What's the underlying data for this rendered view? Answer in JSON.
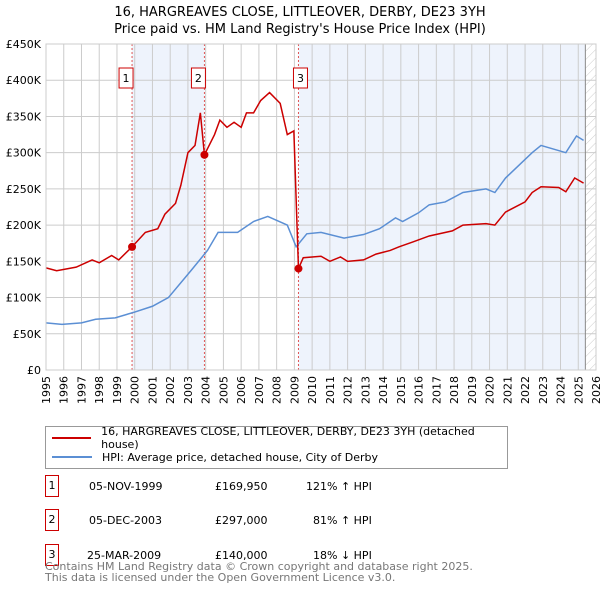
{
  "title_lines": [
    "16, HARGREAVES CLOSE, LITTLEOVER, DERBY, DE23 3YH",
    "Price paid vs. HM Land Registry's House Price Index (HPI)"
  ],
  "chart_data": {
    "type": "line",
    "title": "16, HARGREAVES CLOSE, LITTLEOVER, DERBY, DE23 3YH - Price paid vs. HM Land Registry's House Price Index (HPI)",
    "xlim": [
      1995,
      2026
    ],
    "ylim": [
      0,
      450000
    ],
    "x_ticks": [
      "1995",
      "1996",
      "1997",
      "1998",
      "1999",
      "2000",
      "2001",
      "2002",
      "2003",
      "2004",
      "2005",
      "2006",
      "2007",
      "2008",
      "2009",
      "2010",
      "2011",
      "2012",
      "2013",
      "2014",
      "2015",
      "2016",
      "2017",
      "2018",
      "2019",
      "2020",
      "2021",
      "2022",
      "2023",
      "2024",
      "2025",
      "2026"
    ],
    "y_ticks": [
      {
        "v": 0,
        "l": "£0"
      },
      {
        "v": 50000,
        "l": "£50K"
      },
      {
        "v": 100000,
        "l": "£100K"
      },
      {
        "v": 150000,
        "l": "£150K"
      },
      {
        "v": 200000,
        "l": "£200K"
      },
      {
        "v": 250000,
        "l": "£250K"
      },
      {
        "v": 300000,
        "l": "£300K"
      },
      {
        "v": 350000,
        "l": "£350K"
      },
      {
        "v": 400000,
        "l": "£400K"
      },
      {
        "v": 450000,
        "l": "£450K"
      }
    ],
    "grid": true,
    "series": [
      {
        "name": "16, HARGREAVES CLOSE, LITTLEOVER, DERBY, DE23 3YH (detached house)",
        "color": "#cc0000",
        "x": [
          1995,
          1995.6,
          1996.7,
          1997.6,
          1998,
          1998.7,
          1999.1,
          1999.85,
          2000.6,
          2001.3,
          2001.7,
          2002.3,
          2002.6,
          2003,
          2003.4,
          2003.7,
          2003.93,
          2004.5,
          2004.8,
          2005.2,
          2005.6,
          2006,
          2006.3,
          2006.7,
          2007.1,
          2007.6,
          2008.2,
          2008.6,
          2008.97,
          2009.23,
          2009.5,
          2010.5,
          2011,
          2011.6,
          2012,
          2012.9,
          2013.6,
          2014.4,
          2014.9,
          2015.7,
          2016.6,
          2017.9,
          2018.5,
          2019.8,
          2020.3,
          2020.9,
          2022,
          2022.4,
          2022.9,
          2023.9,
          2024.3,
          2024.8,
          2025.3
        ],
        "y": [
          141000,
          137000,
          142000,
          152000,
          148000,
          158000,
          152000,
          169950,
          190000,
          195000,
          215000,
          230000,
          255000,
          300000,
          310000,
          355000,
          297000,
          325000,
          345000,
          335000,
          342000,
          335000,
          355000,
          355000,
          372000,
          383000,
          368000,
          325000,
          330000,
          140000,
          155000,
          157000,
          150000,
          156000,
          150000,
          152000,
          160000,
          165000,
          170000,
          177000,
          185000,
          192000,
          200000,
          202000,
          200000,
          218000,
          232000,
          245000,
          253000,
          252000,
          246000,
          265000,
          258000
        ]
      },
      {
        "name": "HPI: Average price, detached house, City of Derby",
        "color": "#5b8fd4",
        "x": [
          1995,
          1995.9,
          1997,
          1997.8,
          1998.9,
          2000,
          2001,
          2001.9,
          2003.2,
          2004.1,
          2004.7,
          2005.8,
          2006.7,
          2007.5,
          2008.6,
          2009.1,
          2009.7,
          2010.5,
          2011.8,
          2012.9,
          2013.8,
          2014.7,
          2015.1,
          2016,
          2016.6,
          2017.5,
          2018.5,
          2019.8,
          2020.3,
          2020.9,
          2022.4,
          2022.9,
          2024.3,
          2024.9,
          2025.3
        ],
        "y": [
          65000,
          63000,
          65000,
          70000,
          72000,
          80000,
          88000,
          100000,
          138000,
          165000,
          190000,
          190000,
          205000,
          212000,
          200000,
          170000,
          188000,
          190000,
          182000,
          187000,
          195000,
          210000,
          205000,
          217000,
          228000,
          232000,
          245000,
          250000,
          245000,
          265000,
          300000,
          310000,
          300000,
          323000,
          317000
        ]
      }
    ],
    "sales": [
      {
        "label": "1",
        "x": 1999.85,
        "y": 169950
      },
      {
        "label": "2",
        "x": 2003.93,
        "y": 297000
      },
      {
        "label": "3",
        "x": 2009.23,
        "y": 140000
      }
    ],
    "shaded_ranges": [
      [
        1999.85,
        2003.93
      ],
      [
        2009.23,
        2025.4
      ]
    ],
    "hatched_from": 2025.4
  },
  "legend": [
    {
      "label": "16, HARGREAVES CLOSE, LITTLEOVER, DERBY, DE23 3YH (detached house)",
      "color": "#cc0000"
    },
    {
      "label": "HPI: Average price, detached house, City of Derby",
      "color": "#5b8fd4"
    }
  ],
  "transactions": [
    {
      "num": "1",
      "date": "05-NOV-1999",
      "price": "£169,950",
      "hpi": "121% ↑ HPI"
    },
    {
      "num": "2",
      "date": "05-DEC-2003",
      "price": "£297,000",
      "hpi": "81% ↑ HPI"
    },
    {
      "num": "3",
      "date": "25-MAR-2009",
      "price": "£140,000",
      "hpi": "18% ↓ HPI"
    }
  ],
  "footer": [
    "Contains HM Land Registry data © Crown copyright and database right 2025.",
    "This data is licensed under the Open Government Licence v3.0."
  ]
}
